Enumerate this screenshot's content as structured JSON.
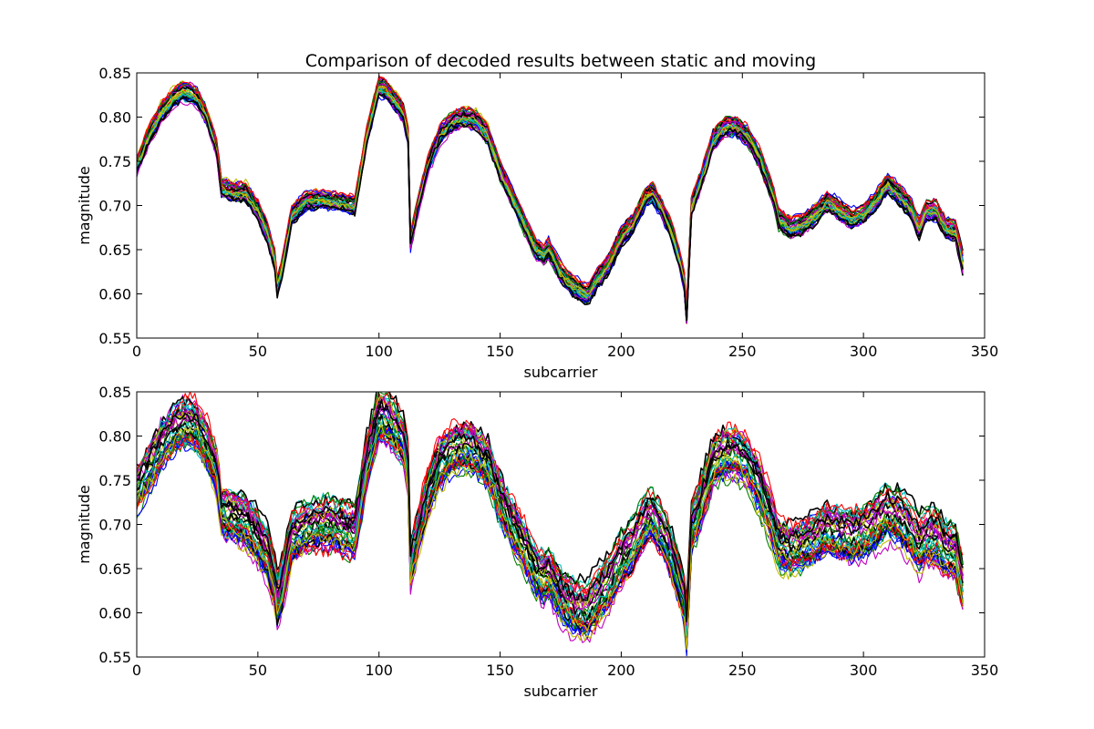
{
  "figure": {
    "title": "Comparison of decoded results between static and moving"
  },
  "colors": {
    "cycle": [
      "#0000ff",
      "#008000",
      "#ff0000",
      "#00bfbf",
      "#bf00bf",
      "#bfbf00",
      "#000000"
    ]
  },
  "chart_data": [
    {
      "type": "line",
      "title": "Comparison of decoded results between static and moving",
      "xlabel": "subcarrier",
      "ylabel": "magnitude",
      "xlim": [
        0,
        350
      ],
      "ylim": [
        0.55,
        0.85
      ],
      "x_ticks": [
        "0",
        "50",
        "100",
        "150",
        "200",
        "250",
        "300",
        "350"
      ],
      "y_ticks": [
        "0.55",
        "0.60",
        "0.65",
        "0.70",
        "0.75",
        "0.80",
        "0.85"
      ],
      "grid": false,
      "legend": "none",
      "x_range": [
        0,
        341
      ],
      "num_series": 42,
      "series_spread": 0.012,
      "noise_level": 0.003,
      "mean_profile": [
        [
          0,
          0.745
        ],
        [
          5,
          0.78
        ],
        [
          10,
          0.805
        ],
        [
          15,
          0.822
        ],
        [
          19,
          0.83
        ],
        [
          22,
          0.828
        ],
        [
          25,
          0.822
        ],
        [
          29,
          0.8
        ],
        [
          33,
          0.765
        ],
        [
          35,
          0.72
        ],
        [
          40,
          0.715
        ],
        [
          45,
          0.716
        ],
        [
          50,
          0.695
        ],
        [
          54,
          0.67
        ],
        [
          57,
          0.64
        ],
        [
          58,
          0.61
        ],
        [
          60,
          0.63
        ],
        [
          64,
          0.69
        ],
        [
          70,
          0.706
        ],
        [
          75,
          0.708
        ],
        [
          80,
          0.706
        ],
        [
          85,
          0.705
        ],
        [
          90,
          0.7
        ],
        [
          95,
          0.78
        ],
        [
          100,
          0.835
        ],
        [
          103,
          0.832
        ],
        [
          107,
          0.818
        ],
        [
          110,
          0.805
        ],
        [
          112,
          0.78
        ],
        [
          113,
          0.66
        ],
        [
          116,
          0.7
        ],
        [
          120,
          0.745
        ],
        [
          125,
          0.78
        ],
        [
          130,
          0.795
        ],
        [
          135,
          0.8
        ],
        [
          140,
          0.797
        ],
        [
          145,
          0.78
        ],
        [
          150,
          0.74
        ],
        [
          155,
          0.71
        ],
        [
          160,
          0.68
        ],
        [
          165,
          0.65
        ],
        [
          168,
          0.645
        ],
        [
          170,
          0.652
        ],
        [
          175,
          0.625
        ],
        [
          180,
          0.61
        ],
        [
          183,
          0.605
        ],
        [
          186,
          0.6
        ],
        [
          190,
          0.617
        ],
        [
          195,
          0.635
        ],
        [
          200,
          0.665
        ],
        [
          205,
          0.68
        ],
        [
          210,
          0.71
        ],
        [
          213,
          0.715
        ],
        [
          217,
          0.695
        ],
        [
          221,
          0.67
        ],
        [
          224,
          0.64
        ],
        [
          226,
          0.615
        ],
        [
          227,
          0.578
        ],
        [
          229,
          0.7
        ],
        [
          233,
          0.73
        ],
        [
          238,
          0.775
        ],
        [
          243,
          0.79
        ],
        [
          247,
          0.79
        ],
        [
          252,
          0.78
        ],
        [
          257,
          0.755
        ],
        [
          263,
          0.71
        ],
        [
          265,
          0.685
        ],
        [
          270,
          0.675
        ],
        [
          275,
          0.68
        ],
        [
          280,
          0.69
        ],
        [
          285,
          0.705
        ],
        [
          290,
          0.695
        ],
        [
          295,
          0.685
        ],
        [
          300,
          0.69
        ],
        [
          305,
          0.705
        ],
        [
          310,
          0.725
        ],
        [
          315,
          0.712
        ],
        [
          320,
          0.695
        ],
        [
          323,
          0.675
        ],
        [
          326,
          0.695
        ],
        [
          330,
          0.695
        ],
        [
          334,
          0.675
        ],
        [
          338,
          0.672
        ],
        [
          341,
          0.635
        ]
      ]
    },
    {
      "type": "line",
      "title": "",
      "xlabel": "subcarrier",
      "ylabel": "magnitude",
      "xlim": [
        0,
        350
      ],
      "ylim": [
        0.55,
        0.85
      ],
      "x_ticks": [
        "0",
        "50",
        "100",
        "150",
        "200",
        "250",
        "300",
        "350"
      ],
      "y_ticks": [
        "0.55",
        "0.60",
        "0.65",
        "0.70",
        "0.75",
        "0.80",
        "0.85"
      ],
      "grid": false,
      "legend": "none",
      "x_range": [
        0,
        341
      ],
      "num_series": 42,
      "series_spread": 0.032,
      "noise_level": 0.007,
      "mean_profile": [
        [
          0,
          0.74
        ],
        [
          5,
          0.765
        ],
        [
          10,
          0.79
        ],
        [
          15,
          0.808
        ],
        [
          19,
          0.815
        ],
        [
          22,
          0.815
        ],
        [
          25,
          0.81
        ],
        [
          29,
          0.79
        ],
        [
          33,
          0.76
        ],
        [
          35,
          0.715
        ],
        [
          40,
          0.71
        ],
        [
          45,
          0.705
        ],
        [
          50,
          0.685
        ],
        [
          54,
          0.665
        ],
        [
          57,
          0.635
        ],
        [
          58,
          0.612
        ],
        [
          60,
          0.63
        ],
        [
          64,
          0.685
        ],
        [
          70,
          0.697
        ],
        [
          75,
          0.7
        ],
        [
          80,
          0.7
        ],
        [
          85,
          0.695
        ],
        [
          90,
          0.69
        ],
        [
          95,
          0.77
        ],
        [
          100,
          0.822
        ],
        [
          103,
          0.82
        ],
        [
          107,
          0.808
        ],
        [
          110,
          0.795
        ],
        [
          112,
          0.765
        ],
        [
          113,
          0.655
        ],
        [
          116,
          0.69
        ],
        [
          120,
          0.735
        ],
        [
          125,
          0.77
        ],
        [
          130,
          0.785
        ],
        [
          135,
          0.79
        ],
        [
          140,
          0.785
        ],
        [
          145,
          0.77
        ],
        [
          150,
          0.73
        ],
        [
          155,
          0.7
        ],
        [
          160,
          0.675
        ],
        [
          165,
          0.645
        ],
        [
          168,
          0.64
        ],
        [
          170,
          0.645
        ],
        [
          175,
          0.62
        ],
        [
          180,
          0.607
        ],
        [
          183,
          0.603
        ],
        [
          186,
          0.6
        ],
        [
          190,
          0.615
        ],
        [
          195,
          0.633
        ],
        [
          200,
          0.66
        ],
        [
          205,
          0.675
        ],
        [
          210,
          0.705
        ],
        [
          213,
          0.71
        ],
        [
          217,
          0.69
        ],
        [
          221,
          0.665
        ],
        [
          224,
          0.635
        ],
        [
          226,
          0.612
        ],
        [
          227,
          0.58
        ],
        [
          229,
          0.695
        ],
        [
          233,
          0.725
        ],
        [
          238,
          0.77
        ],
        [
          243,
          0.782
        ],
        [
          247,
          0.782
        ],
        [
          252,
          0.772
        ],
        [
          257,
          0.745
        ],
        [
          263,
          0.7
        ],
        [
          265,
          0.68
        ],
        [
          270,
          0.675
        ],
        [
          275,
          0.678
        ],
        [
          280,
          0.685
        ],
        [
          285,
          0.695
        ],
        [
          290,
          0.69
        ],
        [
          295,
          0.685
        ],
        [
          300,
          0.69
        ],
        [
          305,
          0.7
        ],
        [
          310,
          0.712
        ],
        [
          315,
          0.705
        ],
        [
          320,
          0.69
        ],
        [
          323,
          0.675
        ],
        [
          326,
          0.685
        ],
        [
          330,
          0.685
        ],
        [
          334,
          0.672
        ],
        [
          338,
          0.668
        ],
        [
          341,
          0.63
        ]
      ]
    }
  ]
}
